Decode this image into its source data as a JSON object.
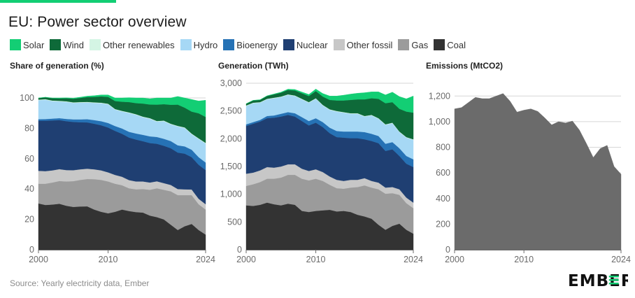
{
  "header": {
    "title": "EU: Power sector overview",
    "source": "Source: Yearly electricity data, Ember"
  },
  "brand": {
    "logo_text": "EMBER",
    "accent": "#13ce74"
  },
  "legend": [
    {
      "name": "Solar",
      "color": "#13ce74"
    },
    {
      "name": "Wind",
      "color": "#0e6a39"
    },
    {
      "name": "Other renewables",
      "color": "#d4f5e4"
    },
    {
      "name": "Hydro",
      "color": "#a6d8f5"
    },
    {
      "name": "Bioenergy",
      "color": "#2672b5"
    },
    {
      "name": "Nuclear",
      "color": "#1f3f72"
    },
    {
      "name": "Other fossil",
      "color": "#c7c7c7"
    },
    {
      "name": "Gas",
      "color": "#9b9b9b"
    },
    {
      "name": "Coal",
      "color": "#333333"
    }
  ],
  "chart_data": [
    {
      "type": "area",
      "title": "Share of generation (%)",
      "x": [
        2000,
        2001,
        2002,
        2003,
        2004,
        2005,
        2006,
        2007,
        2008,
        2009,
        2010,
        2011,
        2012,
        2013,
        2014,
        2015,
        2016,
        2017,
        2018,
        2019,
        2020,
        2021,
        2022,
        2023,
        2024
      ],
      "x_ticks": [
        "2000",
        "2010",
        "2024"
      ],
      "ylim": [
        0,
        100
      ],
      "y_ticks": [
        "0",
        "20",
        "40",
        "60",
        "80",
        "100"
      ],
      "stack_order": [
        "Coal",
        "Gas",
        "Other fossil",
        "Nuclear",
        "Bioenergy",
        "Hydro",
        "Other renewables",
        "Wind",
        "Solar"
      ],
      "series": [
        {
          "name": "Coal",
          "values": [
            30.5,
            29.5,
            29.8,
            30.3,
            29.0,
            28.2,
            28.5,
            28.6,
            26.5,
            25.0,
            24.0,
            25.0,
            26.5,
            25.5,
            24.8,
            24.5,
            22.5,
            21.5,
            20.0,
            16.5,
            13.0,
            15.5,
            17.0,
            13.0,
            10.0
          ]
        },
        {
          "name": "Gas",
          "values": [
            13.0,
            14.0,
            14.5,
            15.0,
            16.0,
            17.0,
            17.5,
            18.0,
            20.0,
            21.0,
            21.0,
            18.5,
            16.0,
            15.0,
            15.0,
            15.5,
            17.0,
            19.0,
            19.5,
            22.0,
            23.0,
            20.5,
            19.0,
            17.0,
            16.5
          ]
        },
        {
          "name": "Other fossil",
          "values": [
            8.5,
            8.3,
            8.0,
            7.8,
            7.5,
            7.2,
            7.0,
            6.8,
            6.5,
            6.3,
            6.0,
            5.8,
            5.6,
            5.4,
            5.2,
            5.0,
            4.8,
            4.6,
            4.4,
            4.2,
            4.0,
            3.8,
            3.7,
            3.6,
            3.5
          ]
        },
        {
          "name": "Nuclear",
          "values": [
            33.0,
            33.2,
            32.9,
            32.3,
            32.2,
            31.8,
            31.0,
            30.5,
            30.0,
            29.7,
            29.5,
            29.0,
            28.3,
            28.0,
            27.6,
            26.5,
            26.0,
            24.7,
            24.6,
            24.2,
            24.0,
            23.5,
            21.3,
            22.4,
            22.5
          ]
        },
        {
          "name": "Bioenergy",
          "values": [
            1.0,
            1.1,
            1.2,
            1.3,
            1.5,
            1.7,
            1.9,
            2.1,
            2.4,
            2.7,
            3.0,
            3.2,
            3.5,
            3.8,
            4.0,
            4.2,
            4.4,
            4.5,
            4.6,
            4.7,
            4.8,
            4.8,
            4.9,
            5.0,
            5.0
          ]
        },
        {
          "name": "Hydro",
          "values": [
            12.5,
            12.7,
            11.5,
            11.0,
            11.2,
            10.8,
            11.0,
            11.0,
            11.3,
            11.8,
            12.3,
            10.8,
            11.2,
            12.4,
            12.3,
            11.6,
            11.6,
            10.1,
            11.6,
            11.0,
            12.4,
            12.1,
            10.2,
            12.0,
            12.5
          ]
        },
        {
          "name": "Other renewables",
          "values": [
            0.4,
            0.4,
            0.4,
            0.4,
            0.4,
            0.4,
            0.4,
            0.4,
            0.4,
            0.4,
            0.4,
            0.4,
            0.4,
            0.4,
            0.4,
            0.4,
            0.4,
            0.4,
            0.4,
            0.4,
            0.4,
            0.4,
            0.4,
            0.4,
            0.4
          ]
        },
        {
          "name": "Wind",
          "values": [
            1.0,
            1.2,
            1.5,
            1.6,
            2.0,
            2.4,
            2.7,
            3.2,
            3.6,
            4.1,
            4.5,
            5.3,
            6.0,
            6.8,
            7.3,
            8.6,
            9.0,
            10.8,
            10.8,
            12.5,
            14.0,
            13.0,
            14.5,
            16.5,
            17.1
          ]
        },
        {
          "name": "Solar",
          "values": [
            0.1,
            0.1,
            0.2,
            0.3,
            0.3,
            0.4,
            0.5,
            0.6,
            0.8,
            1.0,
            1.3,
            2.0,
            2.5,
            2.9,
            3.4,
            3.7,
            3.8,
            4.4,
            4.1,
            4.5,
            5.4,
            6.4,
            8.0,
            8.1,
            11.0
          ]
        }
      ]
    },
    {
      "type": "area",
      "title": "Generation (TWh)",
      "x": [
        2000,
        2001,
        2002,
        2003,
        2004,
        2005,
        2006,
        2007,
        2008,
        2009,
        2010,
        2011,
        2012,
        2013,
        2014,
        2015,
        2016,
        2017,
        2018,
        2019,
        2020,
        2021,
        2022,
        2023,
        2024
      ],
      "x_ticks": [
        "2000",
        "2010",
        "2024"
      ],
      "ylim": [
        0,
        3000
      ],
      "y_ticks": [
        "0",
        "500",
        "1,000",
        "1,500",
        "2,000",
        "2,500",
        "3,000"
      ],
      "stack_order": [
        "Coal",
        "Gas",
        "Other fossil",
        "Nuclear",
        "Bioenergy",
        "Hydro",
        "Other renewables",
        "Wind",
        "Solar"
      ],
      "series": [
        {
          "name": "Coal",
          "values": [
            800,
            790,
            810,
            850,
            820,
            800,
            830,
            810,
            700,
            680,
            700,
            710,
            720,
            690,
            700,
            680,
            630,
            600,
            560,
            450,
            360,
            430,
            470,
            360,
            290
          ]
        },
        {
          "name": "Gas",
          "values": [
            350,
            390,
            410,
            430,
            460,
            500,
            520,
            540,
            580,
            570,
            580,
            530,
            450,
            420,
            400,
            440,
            500,
            560,
            560,
            640,
            650,
            590,
            520,
            480,
            460
          ]
        },
        {
          "name": "Other fossil",
          "values": [
            220,
            210,
            210,
            210,
            200,
            200,
            190,
            190,
            180,
            170,
            170,
            160,
            150,
            150,
            140,
            140,
            130,
            130,
            120,
            120,
            110,
            110,
            100,
            100,
            100
          ]
        },
        {
          "name": "Nuclear",
          "values": [
            860,
            880,
            880,
            880,
            900,
            900,
            890,
            860,
            860,
            820,
            840,
            810,
            780,
            770,
            780,
            750,
            750,
            700,
            720,
            710,
            660,
            680,
            600,
            610,
            640
          ]
        },
        {
          "name": "Bioenergy",
          "values": [
            30,
            30,
            30,
            40,
            40,
            50,
            50,
            60,
            70,
            80,
            80,
            90,
            100,
            110,
            110,
            120,
            120,
            130,
            130,
            130,
            130,
            130,
            140,
            140,
            140
          ]
        },
        {
          "name": "Hydro",
          "values": [
            330,
            340,
            310,
            300,
            310,
            300,
            310,
            310,
            320,
            330,
            350,
            300,
            320,
            350,
            340,
            320,
            320,
            280,
            330,
            310,
            340,
            340,
            290,
            330,
            350
          ]
        },
        {
          "name": "Other renewables",
          "values": [
            10,
            10,
            10,
            10,
            10,
            10,
            10,
            10,
            10,
            10,
            10,
            10,
            10,
            10,
            10,
            10,
            10,
            10,
            10,
            10,
            10,
            10,
            10,
            10,
            10
          ]
        },
        {
          "name": "Wind",
          "values": [
            30,
            40,
            40,
            50,
            60,
            70,
            80,
            90,
            100,
            110,
            130,
            150,
            170,
            190,
            210,
            240,
            250,
            300,
            300,
            350,
            380,
            370,
            410,
            460,
            480
          ]
        },
        {
          "name": "Solar",
          "values": [
            2,
            3,
            4,
            5,
            7,
            10,
            14,
            18,
            22,
            28,
            36,
            55,
            70,
            80,
            95,
            105,
            110,
            120,
            115,
            125,
            150,
            180,
            220,
            230,
            300
          ]
        }
      ]
    },
    {
      "type": "area",
      "title": "Emissions (MtCO2)",
      "x": [
        2000,
        2001,
        2002,
        2003,
        2004,
        2005,
        2006,
        2007,
        2008,
        2009,
        2010,
        2011,
        2012,
        2013,
        2014,
        2015,
        2016,
        2017,
        2018,
        2019,
        2020,
        2021,
        2022,
        2023,
        2024
      ],
      "x_ticks": [
        "2000",
        "2010",
        "2024"
      ],
      "ylim": [
        0,
        1300
      ],
      "y_ticks": [
        "0",
        "200",
        "400",
        "600",
        "800",
        "1,000",
        "1,200"
      ],
      "series": [
        {
          "name": "Emissions",
          "color": "#6b6b6b",
          "values": [
            1100,
            1110,
            1150,
            1190,
            1180,
            1180,
            1200,
            1220,
            1160,
            1075,
            1090,
            1100,
            1080,
            1030,
            975,
            1000,
            990,
            1005,
            935,
            830,
            720,
            790,
            815,
            650,
            590
          ]
        }
      ]
    }
  ]
}
